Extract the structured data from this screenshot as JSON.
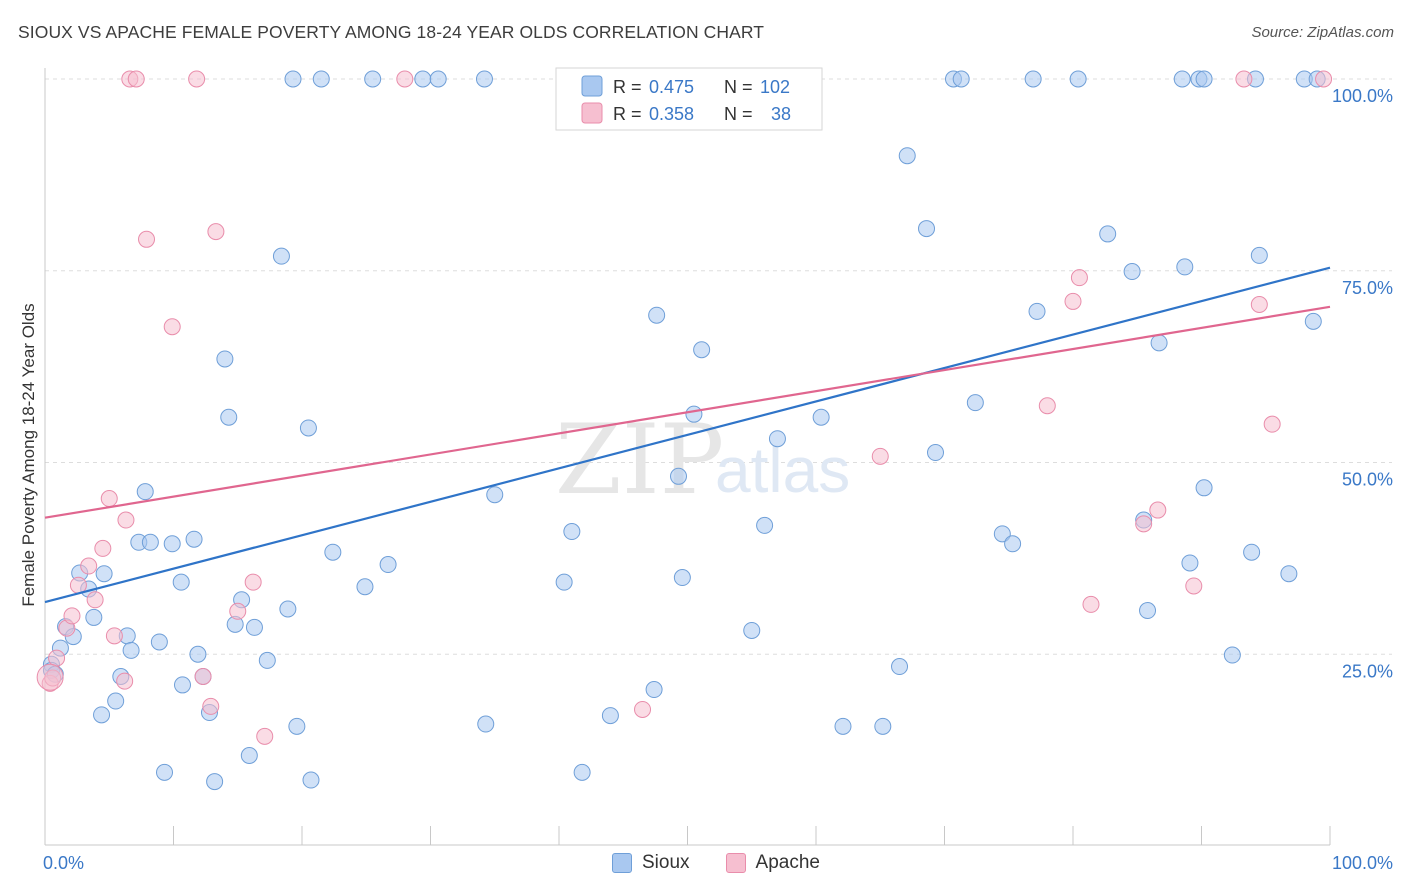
{
  "title": "SIOUX VS APACHE FEMALE POVERTY AMONG 18-24 YEAR OLDS CORRELATION CHART",
  "source": "Source: ZipAtlas.com",
  "watermark": {
    "zip": "ZIP",
    "atlas": "atlas"
  },
  "legend": {
    "r_label": "R =",
    "n_label": "N =",
    "sioux": {
      "r": "0.475",
      "n": "102"
    },
    "apache": {
      "r": "0.358",
      "n": "38"
    }
  },
  "colors": {
    "sioux_fill": "#a9c8f0",
    "sioux_stroke": "#6f9fd8",
    "sioux_line": "#2f74c8",
    "apache_fill": "#f6bfd0",
    "apache_stroke": "#e98dab",
    "apache_line": "#e0668f",
    "value_text": "#3a78c7",
    "grid": "#dddddd"
  },
  "chart_data": {
    "type": "scatter",
    "title": "SIOUX VS APACHE FEMALE POVERTY AMONG 18-24 YEAR OLDS CORRELATION CHART",
    "xlabel": "",
    "ylabel": "Female Poverty Among 18-24 Year Olds",
    "xlim": [
      0,
      100
    ],
    "ylim": [
      0,
      100
    ],
    "x_tick_labels": [
      "0.0%",
      "100.0%"
    ],
    "y_tick_labels": [
      "25.0%",
      "50.0%",
      "75.0%",
      "100.0%"
    ],
    "y_ticks": [
      25,
      50,
      75,
      100
    ],
    "grid": true,
    "legend_position": "top-center",
    "series": [
      {
        "name": "Sioux",
        "trend": [
          [
            0,
            31.8
          ],
          [
            100,
            75.4
          ]
        ],
        "points": [
          [
            0.5,
            23.7
          ],
          [
            0.5,
            22.9
          ],
          [
            0.8,
            22.4
          ],
          [
            1.2,
            25.8
          ],
          [
            1.6,
            28.6
          ],
          [
            2.2,
            27.3
          ],
          [
            2.7,
            35.6
          ],
          [
            3.4,
            33.5
          ],
          [
            3.8,
            29.8
          ],
          [
            4.4,
            17.1
          ],
          [
            4.6,
            35.5
          ],
          [
            5.5,
            18.9
          ],
          [
            5.9,
            22.1
          ],
          [
            6.4,
            27.4
          ],
          [
            6.7,
            25.5
          ],
          [
            7.3,
            39.6
          ],
          [
            7.8,
            46.2
          ],
          [
            8.2,
            39.6
          ],
          [
            8.9,
            26.6
          ],
          [
            9.3,
            9.6
          ],
          [
            9.9,
            39.4
          ],
          [
            10.6,
            34.4
          ],
          [
            10.7,
            21.0
          ],
          [
            11.6,
            40.0
          ],
          [
            11.9,
            25.0
          ],
          [
            12.3,
            22.1
          ],
          [
            12.8,
            17.4
          ],
          [
            13.2,
            8.4
          ],
          [
            14.0,
            63.5
          ],
          [
            14.3,
            55.9
          ],
          [
            14.8,
            28.9
          ],
          [
            15.3,
            32.1
          ],
          [
            15.9,
            11.8
          ],
          [
            16.3,
            28.5
          ],
          [
            17.3,
            24.2
          ],
          [
            18.4,
            76.9
          ],
          [
            18.9,
            30.9
          ],
          [
            19.6,
            15.6
          ],
          [
            20.5,
            54.5
          ],
          [
            20.7,
            8.6
          ],
          [
            22.4,
            38.3
          ],
          [
            24.9,
            33.8
          ],
          [
            26.7,
            36.7
          ],
          [
            34.3,
            15.9
          ],
          [
            35.0,
            45.8
          ],
          [
            40.4,
            34.4
          ],
          [
            41.0,
            41.0
          ],
          [
            41.8,
            9.6
          ],
          [
            44.0,
            17.0
          ],
          [
            47.4,
            20.4
          ],
          [
            47.6,
            69.2
          ],
          [
            49.3,
            48.2
          ],
          [
            49.6,
            35.0
          ],
          [
            50.5,
            56.3
          ],
          [
            51.1,
            64.7
          ],
          [
            55.0,
            28.1
          ],
          [
            56.0,
            41.8
          ],
          [
            57.0,
            53.1
          ],
          [
            60.4,
            55.9
          ],
          [
            62.1,
            15.6
          ],
          [
            65.2,
            15.6
          ],
          [
            66.5,
            23.4
          ],
          [
            67.1,
            90.0
          ],
          [
            68.6,
            80.5
          ],
          [
            69.3,
            51.3
          ],
          [
            72.4,
            57.8
          ],
          [
            74.5,
            40.7
          ],
          [
            75.3,
            39.4
          ],
          [
            77.2,
            69.7
          ],
          [
            82.7,
            79.8
          ],
          [
            84.6,
            74.9
          ],
          [
            85.5,
            42.5
          ],
          [
            85.8,
            30.7
          ],
          [
            86.7,
            65.6
          ],
          [
            88.7,
            75.5
          ],
          [
            89.1,
            36.9
          ],
          [
            90.2,
            46.7
          ],
          [
            92.4,
            24.9
          ],
          [
            93.9,
            38.3
          ],
          [
            94.5,
            77.0
          ],
          [
            96.8,
            35.5
          ],
          [
            98.7,
            68.4
          ],
          [
            19.3,
            102.4
          ],
          [
            21.5,
            102.4
          ],
          [
            25.5,
            102.4
          ],
          [
            29.4,
            102.4
          ],
          [
            30.6,
            102.4
          ],
          [
            34.2,
            102.4
          ],
          [
            51.5,
            102.4
          ],
          [
            55.5,
            102.4
          ],
          [
            70.7,
            102.4
          ],
          [
            71.3,
            102.4
          ],
          [
            76.9,
            102.4
          ],
          [
            80.4,
            102.4
          ],
          [
            88.5,
            102.4
          ],
          [
            89.8,
            102.4
          ],
          [
            90.2,
            102.4
          ],
          [
            94.2,
            102.4
          ],
          [
            98.0,
            102.4
          ],
          [
            99.0,
            102.4
          ]
        ]
      },
      {
        "name": "Apache",
        "trend": [
          [
            0,
            42.8
          ],
          [
            100,
            70.3
          ]
        ],
        "points": [
          [
            0.4,
            21.2
          ],
          [
            0.6,
            21.9
          ],
          [
            0.9,
            24.5
          ],
          [
            1.7,
            28.4
          ],
          [
            2.1,
            30.0
          ],
          [
            2.6,
            34.0
          ],
          [
            3.4,
            36.5
          ],
          [
            3.9,
            32.1
          ],
          [
            4.5,
            38.8
          ],
          [
            5.0,
            45.3
          ],
          [
            5.4,
            27.4
          ],
          [
            6.2,
            21.5
          ],
          [
            6.3,
            42.5
          ],
          [
            7.9,
            79.1
          ],
          [
            9.9,
            67.7
          ],
          [
            12.3,
            22.1
          ],
          [
            12.9,
            18.2
          ],
          [
            13.3,
            80.1
          ],
          [
            15.0,
            30.6
          ],
          [
            16.2,
            34.4
          ],
          [
            17.1,
            14.3
          ],
          [
            46.5,
            17.8
          ],
          [
            65.0,
            50.8
          ],
          [
            78.0,
            57.4
          ],
          [
            80.0,
            71.0
          ],
          [
            80.5,
            74.1
          ],
          [
            81.4,
            31.5
          ],
          [
            85.5,
            42.0
          ],
          [
            86.6,
            43.8
          ],
          [
            89.4,
            33.9
          ],
          [
            94.5,
            70.6
          ],
          [
            95.5,
            55.0
          ],
          [
            6.6,
            102.4
          ],
          [
            7.1,
            102.4
          ],
          [
            11.8,
            102.4
          ],
          [
            28.0,
            102.4
          ],
          [
            93.3,
            102.4
          ],
          [
            99.5,
            102.4
          ]
        ]
      }
    ]
  }
}
